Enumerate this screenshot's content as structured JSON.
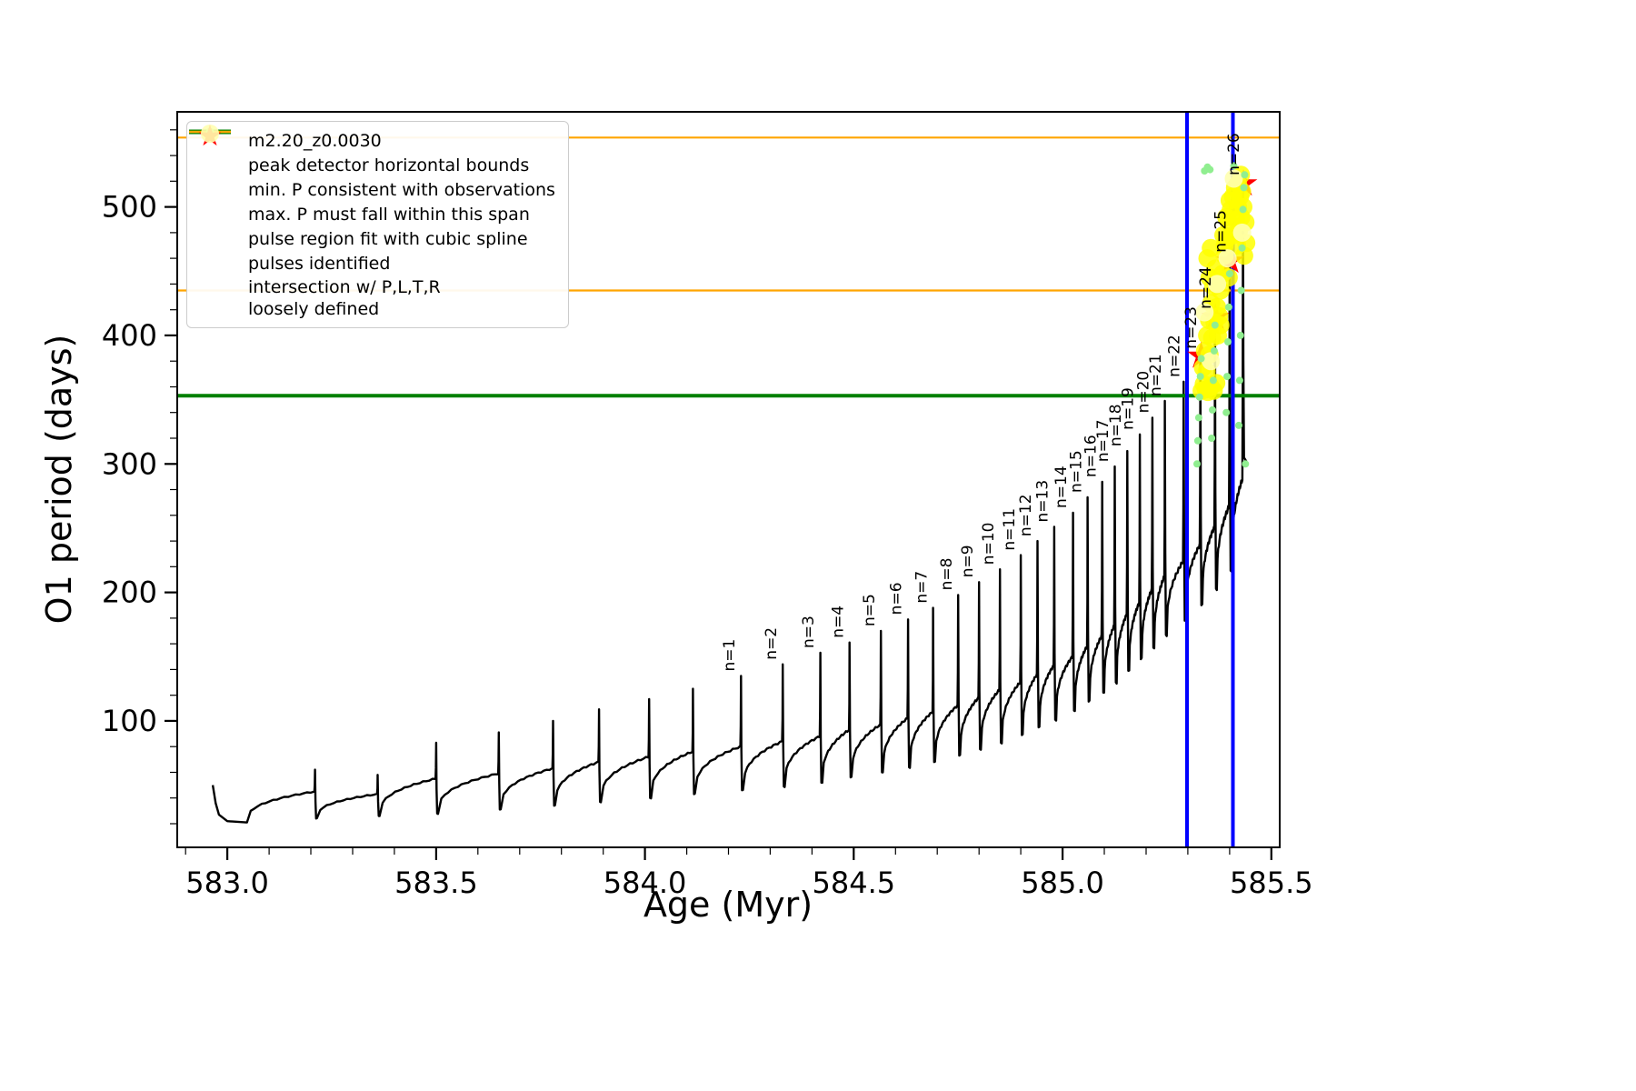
{
  "chart_data": {
    "type": "line",
    "title": "",
    "xlabel": "Age (Myr)",
    "ylabel": "O1 period (days)",
    "xlim": [
      582.88,
      585.52
    ],
    "ylim": [
      1.6,
      574
    ],
    "grid": false,
    "xticks": {
      "major": [
        583.0,
        583.5,
        584.0,
        584.5,
        585.0,
        585.5
      ],
      "labels": [
        "583.0",
        "583.5",
        "584.0",
        "584.5",
        "585.0",
        "585.5"
      ],
      "minor_step": 0.1
    },
    "yticks": {
      "major": [
        100,
        200,
        300,
        400,
        500
      ],
      "labels": [
        "100",
        "200",
        "300",
        "400",
        "500"
      ],
      "minor_step": 20
    },
    "series": {
      "name": "m2.20_z0.0030",
      "color": "#000000",
      "intro": [
        [
          582.965,
          50
        ],
        [
          582.972,
          36
        ],
        [
          582.98,
          27
        ],
        [
          583.0,
          22
        ],
        [
          583.045,
          21
        ]
      ],
      "pulses": [
        [
          583.21,
          62,
          45,
          24,
          ""
        ],
        [
          583.36,
          58,
          43,
          26,
          ""
        ],
        [
          583.5,
          83,
          55,
          28,
          ""
        ],
        [
          583.65,
          91,
          59,
          31,
          ""
        ],
        [
          583.78,
          100,
          63,
          34,
          ""
        ],
        [
          583.89,
          109,
          68,
          37,
          ""
        ],
        [
          584.01,
          117,
          72,
          40,
          ""
        ],
        [
          584.115,
          125,
          76,
          43,
          ""
        ],
        [
          584.23,
          135,
          80,
          46,
          "n=1"
        ],
        [
          584.33,
          144,
          84,
          49,
          "n=2"
        ],
        [
          584.42,
          153,
          88,
          52,
          "n=3"
        ],
        [
          584.49,
          161,
          93,
          56,
          "n=4"
        ],
        [
          584.565,
          170,
          97,
          60,
          "n=5"
        ],
        [
          584.63,
          179,
          102,
          64,
          "n=6"
        ],
        [
          584.69,
          188,
          107,
          68,
          "n=7"
        ],
        [
          584.75,
          198,
          112,
          73,
          "n=8"
        ],
        [
          584.8,
          208,
          118,
          78,
          "n=9"
        ],
        [
          584.85,
          218,
          124,
          83,
          "n=10"
        ],
        [
          584.9,
          229,
          130,
          89,
          "n=11"
        ],
        [
          584.94,
          240,
          136,
          95,
          "n=12"
        ],
        [
          584.98,
          251,
          143,
          101,
          "n=13"
        ],
        [
          585.025,
          262,
          150,
          108,
          "n=14"
        ],
        [
          585.06,
          274,
          158,
          115,
          "n=15"
        ],
        [
          585.095,
          286,
          166,
          122,
          "n=16"
        ],
        [
          585.125,
          298,
          174,
          130,
          "n=17"
        ],
        [
          585.155,
          310,
          183,
          139,
          "n=18"
        ],
        [
          585.185,
          323,
          192,
          148,
          "n=19"
        ],
        [
          585.215,
          336,
          202,
          157,
          "n=20"
        ],
        [
          585.245,
          349,
          212,
          167,
          "n=21"
        ],
        [
          585.29,
          364,
          224,
          178,
          "n=22"
        ],
        [
          585.33,
          386,
          237,
          190,
          "n=23"
        ],
        [
          585.365,
          417,
          251,
          203,
          "n=24"
        ],
        [
          585.4,
          461,
          267,
          217,
          "n=25"
        ],
        [
          585.432,
          521,
          288,
          305,
          "n=26"
        ]
      ],
      "outro": [
        [
          585.44,
          302
        ],
        [
          585.443,
          300
        ]
      ]
    },
    "hlines": [
      {
        "y": 353,
        "color": "#008000",
        "width": 4,
        "name": "min. P consistent with observations"
      },
      {
        "y": 554,
        "color": "#FFA500",
        "width": 2.2,
        "name": "max. P must fall within this span (upper)"
      },
      {
        "y": 435,
        "color": "#FFA500",
        "width": 2.2,
        "name": "max. P must fall within this span (lower)"
      }
    ],
    "vlines": [
      {
        "x": 585.298,
        "color": "#0000FF",
        "width": 4,
        "name": "peak detector left bound"
      },
      {
        "x": 585.408,
        "color": "#0000FF",
        "width": 4,
        "name": "peak detector right bound"
      }
    ],
    "scatter": {
      "red_stars": {
        "color": "#FF0000",
        "points": [
          [
            585.332,
            384
          ],
          [
            585.366,
            414
          ],
          [
            585.401,
            458
          ],
          [
            585.433,
            518
          ]
        ]
      },
      "yellow": {
        "color": "#FFFF00",
        "opacity": 0.85,
        "radius": 10,
        "points": [
          [
            585.333,
            357
          ],
          [
            585.338,
            362
          ],
          [
            585.343,
            358
          ],
          [
            585.348,
            356
          ],
          [
            585.355,
            360
          ],
          [
            585.362,
            357
          ],
          [
            585.368,
            363
          ],
          [
            585.336,
            375
          ],
          [
            585.341,
            388
          ],
          [
            585.346,
            400
          ],
          [
            585.351,
            412
          ],
          [
            585.356,
            425
          ],
          [
            585.345,
            372
          ],
          [
            585.352,
            385
          ],
          [
            585.358,
            398
          ],
          [
            585.364,
            410
          ],
          [
            585.37,
            422
          ],
          [
            585.361,
            438
          ],
          [
            585.366,
            452
          ],
          [
            585.352,
            445
          ],
          [
            585.347,
            460
          ],
          [
            585.355,
            468
          ],
          [
            585.372,
            400
          ],
          [
            585.375,
            415
          ],
          [
            585.378,
            408
          ],
          [
            585.378,
            435
          ],
          [
            585.383,
            448
          ],
          [
            585.388,
            462
          ],
          [
            585.393,
            475
          ],
          [
            585.398,
            488
          ],
          [
            585.403,
            498
          ],
          [
            585.408,
            508
          ],
          [
            585.413,
            515
          ],
          [
            585.385,
            478
          ],
          [
            585.392,
            492
          ],
          [
            585.4,
            505
          ],
          [
            585.408,
            478
          ],
          [
            585.415,
            490
          ],
          [
            585.42,
            500
          ],
          [
            585.425,
            508
          ],
          [
            585.43,
            512
          ],
          [
            585.418,
            470
          ],
          [
            585.423,
            482
          ],
          [
            585.428,
            492
          ],
          [
            585.433,
            500
          ],
          [
            585.438,
            488
          ],
          [
            585.44,
            472
          ],
          [
            585.435,
            462
          ],
          [
            585.427,
            525
          ],
          [
            585.42,
            518
          ],
          [
            585.398,
            445
          ],
          [
            585.388,
            470
          ]
        ]
      },
      "pale": {
        "color": "#FFFFB0",
        "opacity": 0.9,
        "radius": 10,
        "points": [
          [
            585.34,
            418
          ],
          [
            585.37,
            440
          ],
          [
            585.41,
            522
          ],
          [
            585.395,
            460
          ],
          [
            585.43,
            480
          ],
          [
            585.355,
            380
          ]
        ]
      },
      "green": {
        "color": "#90EE90",
        "radius": 4,
        "points": [
          [
            585.322,
            300
          ],
          [
            585.324,
            318
          ],
          [
            585.326,
            336
          ],
          [
            585.328,
            352
          ],
          [
            585.33,
            368
          ],
          [
            585.332,
            382
          ],
          [
            585.357,
            320
          ],
          [
            585.359,
            342
          ],
          [
            585.361,
            365
          ],
          [
            585.363,
            388
          ],
          [
            585.365,
            408
          ],
          [
            585.392,
            340
          ],
          [
            585.394,
            368
          ],
          [
            585.396,
            395
          ],
          [
            585.398,
            422
          ],
          [
            585.4,
            448
          ],
          [
            585.422,
            330
          ],
          [
            585.424,
            365
          ],
          [
            585.426,
            400
          ],
          [
            585.428,
            435
          ],
          [
            585.43,
            468
          ],
          [
            585.432,
            498
          ],
          [
            585.434,
            515
          ],
          [
            585.34,
            528
          ],
          [
            585.347,
            531
          ],
          [
            585.353,
            529
          ],
          [
            585.41,
            532
          ],
          [
            585.436,
            525
          ],
          [
            585.438,
            300
          ]
        ]
      }
    }
  },
  "legend": {
    "items": [
      {
        "label": "m2.20_z0.0030",
        "marker": "line-dot",
        "color": "#000000",
        "icon": "black-series-line-icon"
      },
      {
        "label": "peak detector horizontal bounds",
        "marker": "thick-line",
        "color": "#0000FF",
        "icon": "blue-thick-line-icon"
      },
      {
        "label": "min. P consistent with observations",
        "marker": "thick-line",
        "color": "#008000",
        "icon": "green-thick-line-icon"
      },
      {
        "label": "max. P must fall within this span",
        "marker": "line",
        "color": "#FFA500",
        "icon": "orange-line-icon"
      },
      {
        "label": "pulse region fit with cubic spline",
        "marker": "dot-small",
        "color": "#90EE90",
        "icon": "green-dot-icon"
      },
      {
        "label": "pulses identified",
        "marker": "star",
        "color": "#FF0000",
        "icon": "red-star-icon"
      },
      {
        "label": "intersection w/ P,L,T,R",
        "label2": "loosely defined",
        "marker": "dot-large",
        "color": "#FFFFB0",
        "icon": "pale-yellow-circle-icon"
      }
    ]
  }
}
